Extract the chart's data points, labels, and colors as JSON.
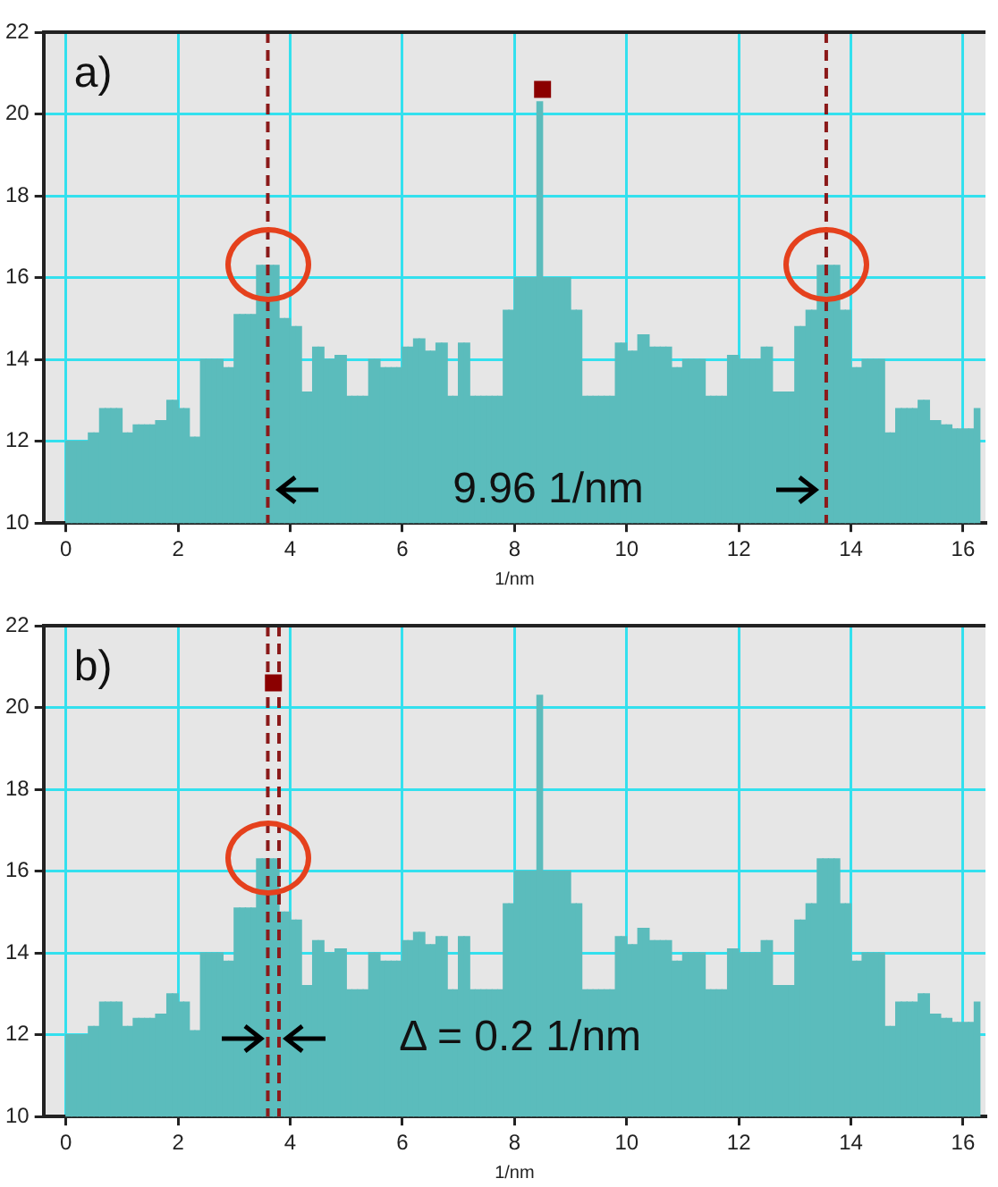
{
  "chart_data": [
    {
      "type": "histogram",
      "color": "#5bbcbc",
      "xlabel": "1/nm",
      "xlim": [
        -0.4,
        16.4
      ],
      "ylim": [
        10,
        22
      ],
      "xticks": [
        0,
        2,
        4,
        6,
        8,
        10,
        12,
        14,
        16
      ],
      "yticks": [
        10,
        12,
        14,
        16,
        18,
        20,
        22
      ],
      "grid": true,
      "marker": "square",
      "legend": false,
      "bins": [
        0,
        0.1,
        0.2,
        0.3,
        0.4,
        0.5,
        0.6,
        0.7,
        0.8,
        0.9,
        1,
        1.1,
        1.2,
        1.3,
        1.4,
        1.5,
        1.6,
        1.7,
        1.8,
        1.9,
        2,
        2.1,
        2.2,
        2.3,
        2.4,
        2.5,
        2.6,
        2.7,
        2.8,
        2.9,
        3,
        3.1,
        3.2,
        3.3,
        3.4,
        3.5,
        3.6,
        3.7,
        3.8,
        3.9,
        4,
        4.1,
        4.2,
        4.3,
        4.4,
        4.5,
        4.6,
        4.7,
        4.8,
        4.9,
        5,
        5.1,
        5.2,
        5.3,
        5.4,
        5.5,
        5.6,
        5.7,
        5.8,
        5.9,
        6,
        6.1,
        6.2,
        6.3,
        6.4,
        6.5,
        6.6,
        6.7,
        6.8,
        6.9,
        7,
        7.1,
        7.2,
        7.3,
        7.4,
        7.5,
        7.6,
        7.7,
        7.8,
        7.9,
        8,
        8.1,
        8.2,
        8.3,
        8.4,
        8.5,
        8.6,
        8.7,
        8.8,
        8.9,
        9,
        9.1,
        9.2,
        9.3,
        9.4,
        9.5,
        9.6,
        9.7,
        9.8,
        9.9,
        10,
        10.1,
        10.2,
        10.3,
        10.4,
        10.5,
        10.6,
        10.7,
        10.8,
        10.9,
        11,
        11.1,
        11.2,
        11.3,
        11.4,
        11.5,
        11.6,
        11.7,
        11.8,
        11.9,
        12,
        12.1,
        12.2,
        12.3,
        12.4,
        12.5,
        12.6,
        12.7,
        12.8,
        12.9,
        13,
        13.1,
        13.2,
        13.3,
        13.4,
        13.5,
        13.6,
        13.7,
        13.8,
        13.9,
        14,
        14.1,
        14.2,
        14.3,
        14.4,
        14.5,
        14.6,
        14.7,
        14.8,
        14.9,
        15,
        15.1,
        15.2,
        15.3,
        15.4,
        15.5,
        15.6,
        15.7,
        15.8,
        15.9,
        16,
        16.1,
        16.2,
        16.3
      ],
      "values": [
        12.0,
        12.0,
        12.0,
        12.0,
        12.2,
        12.2,
        12.8,
        12.8,
        12.8,
        12.8,
        12.2,
        12.2,
        12.4,
        12.4,
        12.4,
        12.4,
        12.5,
        12.5,
        13.0,
        13.0,
        12.8,
        12.8,
        12.1,
        12.1,
        14.0,
        14.0,
        14.0,
        14.0,
        13.8,
        13.8,
        15.1,
        15.1,
        15.1,
        15.1,
        16.3,
        16.3,
        16.3,
        16.3,
        15.0,
        15.0,
        14.8,
        14.8,
        13.2,
        13.2,
        14.3,
        14.3,
        14.0,
        14.0,
        14.1,
        14.1,
        13.1,
        13.1,
        13.1,
        13.1,
        14.0,
        14.0,
        13.8,
        13.8,
        13.8,
        13.8,
        14.3,
        14.3,
        14.5,
        14.5,
        14.2,
        14.2,
        14.4,
        14.4,
        13.1,
        13.1,
        14.4,
        14.4,
        13.1,
        13.1,
        13.1,
        13.1,
        13.1,
        13.1,
        15.2,
        15.2,
        16.0,
        16.0,
        16.0,
        16.0,
        20.3,
        16.0,
        16.0,
        16.0,
        16.0,
        16.0,
        15.2,
        15.2,
        13.1,
        13.1,
        13.1,
        13.1,
        13.1,
        13.1,
        14.4,
        14.4,
        14.2,
        14.2,
        14.6,
        14.6,
        14.3,
        14.3,
        14.3,
        14.3,
        13.8,
        13.8,
        14.0,
        14.0,
        14.0,
        14.0,
        13.1,
        13.1,
        13.1,
        13.1,
        14.1,
        14.1,
        14.0,
        14.0,
        14.0,
        14.0,
        14.3,
        14.3,
        13.2,
        13.2,
        13.2,
        13.2,
        14.8,
        14.8,
        15.2,
        15.2,
        16.3,
        16.3,
        16.3,
        16.3,
        15.2,
        15.2,
        13.8,
        13.8,
        14.0,
        14.0,
        14.0,
        14.0,
        12.2,
        12.2,
        12.8,
        12.8,
        12.8,
        12.8,
        13.0,
        13.0,
        12.5,
        12.5,
        12.4,
        12.4,
        12.3,
        12.3,
        12.3,
        12.3,
        12.8
      ],
      "series": [
        {
          "type": "scatter",
          "color": "#8b0000",
          "x": [
            8.5
          ],
          "values": [
            20.6
          ]
        }
      ],
      "ref_lines": [
        {
          "axis": "x",
          "value": 3.6,
          "color": "#8b1a1a",
          "line_style": "dashed"
        },
        {
          "axis": "x",
          "value": 13.56,
          "color": "#8b1a1a",
          "line_style": "dashed"
        }
      ],
      "annotations": [
        "a)",
        {
          "text": "9.96 1/nm",
          "x": 8.6,
          "y": 10.8
        }
      ]
    },
    {
      "type": "histogram",
      "color": "#5bbcbc",
      "xlabel": "1/nm",
      "xlim": [
        -0.4,
        16.4
      ],
      "ylim": [
        10,
        22
      ],
      "xticks": [
        0,
        2,
        4,
        6,
        8,
        10,
        12,
        14,
        16
      ],
      "yticks": [
        10,
        12,
        14,
        16,
        18,
        20,
        22
      ],
      "grid": true,
      "marker": "square",
      "legend": false,
      "bins": [
        0,
        0.1,
        0.2,
        0.3,
        0.4,
        0.5,
        0.6,
        0.7,
        0.8,
        0.9,
        1,
        1.1,
        1.2,
        1.3,
        1.4,
        1.5,
        1.6,
        1.7,
        1.8,
        1.9,
        2,
        2.1,
        2.2,
        2.3,
        2.4,
        2.5,
        2.6,
        2.7,
        2.8,
        2.9,
        3,
        3.1,
        3.2,
        3.3,
        3.4,
        3.5,
        3.6,
        3.7,
        3.8,
        3.9,
        4,
        4.1,
        4.2,
        4.3,
        4.4,
        4.5,
        4.6,
        4.7,
        4.8,
        4.9,
        5,
        5.1,
        5.2,
        5.3,
        5.4,
        5.5,
        5.6,
        5.7,
        5.8,
        5.9,
        6,
        6.1,
        6.2,
        6.3,
        6.4,
        6.5,
        6.6,
        6.7,
        6.8,
        6.9,
        7,
        7.1,
        7.2,
        7.3,
        7.4,
        7.5,
        7.6,
        7.7,
        7.8,
        7.9,
        8,
        8.1,
        8.2,
        8.3,
        8.4,
        8.5,
        8.6,
        8.7,
        8.8,
        8.9,
        9,
        9.1,
        9.2,
        9.3,
        9.4,
        9.5,
        9.6,
        9.7,
        9.8,
        9.9,
        10,
        10.1,
        10.2,
        10.3,
        10.4,
        10.5,
        10.6,
        10.7,
        10.8,
        10.9,
        11,
        11.1,
        11.2,
        11.3,
        11.4,
        11.5,
        11.6,
        11.7,
        11.8,
        11.9,
        12,
        12.1,
        12.2,
        12.3,
        12.4,
        12.5,
        12.6,
        12.7,
        12.8,
        12.9,
        13,
        13.1,
        13.2,
        13.3,
        13.4,
        13.5,
        13.6,
        13.7,
        13.8,
        13.9,
        14,
        14.1,
        14.2,
        14.3,
        14.4,
        14.5,
        14.6,
        14.7,
        14.8,
        14.9,
        15,
        15.1,
        15.2,
        15.3,
        15.4,
        15.5,
        15.6,
        15.7,
        15.8,
        15.9,
        16,
        16.1,
        16.2,
        16.3
      ],
      "values": [
        12.0,
        12.0,
        12.0,
        12.0,
        12.2,
        12.2,
        12.8,
        12.8,
        12.8,
        12.8,
        12.2,
        12.2,
        12.4,
        12.4,
        12.4,
        12.4,
        12.5,
        12.5,
        13.0,
        13.0,
        12.8,
        12.8,
        12.1,
        12.1,
        14.0,
        14.0,
        14.0,
        14.0,
        13.8,
        13.8,
        15.1,
        15.1,
        15.1,
        15.1,
        16.3,
        16.3,
        16.3,
        16.3,
        15.0,
        15.0,
        14.8,
        14.8,
        13.2,
        13.2,
        14.3,
        14.3,
        14.0,
        14.0,
        14.1,
        14.1,
        13.1,
        13.1,
        13.1,
        13.1,
        14.0,
        14.0,
        13.8,
        13.8,
        13.8,
        13.8,
        14.3,
        14.3,
        14.5,
        14.5,
        14.2,
        14.2,
        14.4,
        14.4,
        13.1,
        13.1,
        14.4,
        14.4,
        13.1,
        13.1,
        13.1,
        13.1,
        13.1,
        13.1,
        15.2,
        15.2,
        16.0,
        16.0,
        16.0,
        16.0,
        20.3,
        16.0,
        16.0,
        16.0,
        16.0,
        16.0,
        15.2,
        15.2,
        13.1,
        13.1,
        13.1,
        13.1,
        13.1,
        13.1,
        14.4,
        14.4,
        14.2,
        14.2,
        14.6,
        14.6,
        14.3,
        14.3,
        14.3,
        14.3,
        13.8,
        13.8,
        14.0,
        14.0,
        14.0,
        14.0,
        13.1,
        13.1,
        13.1,
        13.1,
        14.1,
        14.1,
        14.0,
        14.0,
        14.0,
        14.0,
        14.3,
        14.3,
        13.2,
        13.2,
        13.2,
        13.2,
        14.8,
        14.8,
        15.2,
        15.2,
        16.3,
        16.3,
        16.3,
        16.3,
        15.2,
        15.2,
        13.8,
        13.8,
        14.0,
        14.0,
        14.0,
        14.0,
        12.2,
        12.2,
        12.8,
        12.8,
        12.8,
        12.8,
        13.0,
        13.0,
        12.5,
        12.5,
        12.4,
        12.4,
        12.3,
        12.3,
        12.3,
        12.3,
        12.8
      ],
      "series": [
        {
          "type": "scatter",
          "color": "#8b0000",
          "x": [
            3.7
          ],
          "values": [
            20.6
          ]
        }
      ],
      "ref_lines": [
        {
          "axis": "x",
          "value": 3.6,
          "color": "#8b1a1a",
          "line_style": "dashed"
        },
        {
          "axis": "x",
          "value": 3.8,
          "color": "#8b1a1a",
          "line_style": "dashed"
        }
      ],
      "annotations": [
        "b)",
        {
          "text": "Δ = 0.2 1/nm",
          "x": 8.1,
          "y": 11.9
        }
      ]
    }
  ]
}
